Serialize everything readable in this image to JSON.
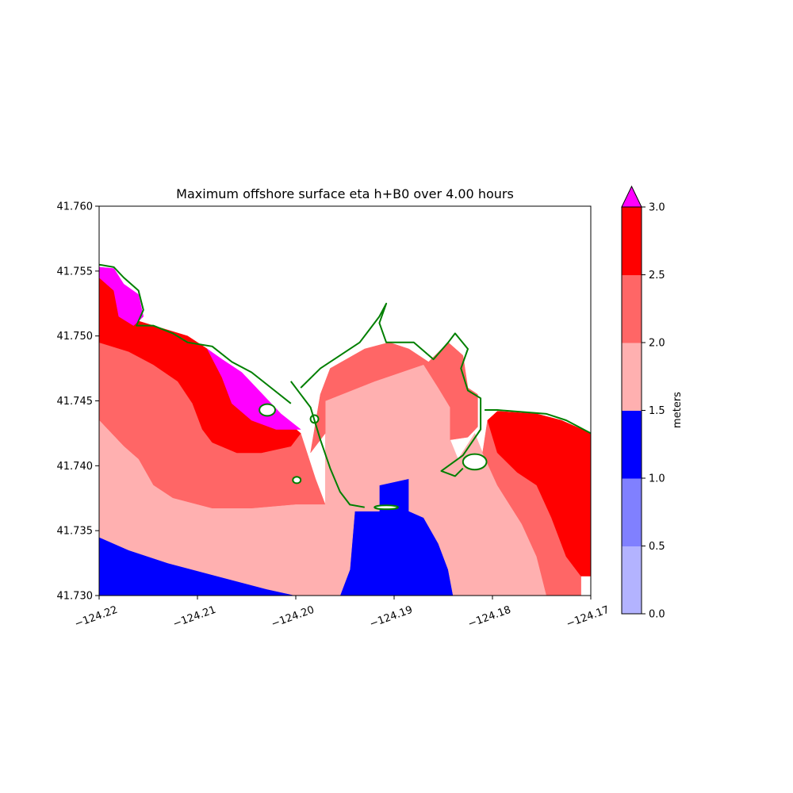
{
  "chart_data": {
    "type": "heatmap",
    "title": "Maximum offshore surface eta h+B0 over 4.00 hours",
    "xlabel": "",
    "ylabel": "",
    "xlim": [
      -124.22,
      -124.17
    ],
    "ylim": [
      41.73,
      41.76
    ],
    "x_ticks": [
      "−124.22",
      "−124.21",
      "−124.20",
      "−124.19",
      "−124.18",
      "−124.17"
    ],
    "y_ticks": [
      "41.730",
      "41.735",
      "41.740",
      "41.745",
      "41.750",
      "41.755",
      "41.760"
    ],
    "colorbar": {
      "label": "meters",
      "extend": "max",
      "ticks": [
        "0.0",
        "0.5",
        "1.0",
        "1.5",
        "2.0",
        "2.5",
        "3.0"
      ],
      "bins": [
        {
          "range": [
            0.0,
            0.5
          ],
          "color": "#b3b3ff"
        },
        {
          "range": [
            0.5,
            1.0
          ],
          "color": "#8080ff"
        },
        {
          "range": [
            1.0,
            1.5
          ],
          "color": "#0000ff"
        },
        {
          "range": [
            1.5,
            2.0
          ],
          "color": "#ffb0b0"
        },
        {
          "range": [
            2.0,
            2.5
          ],
          "color": "#ff6666"
        },
        {
          "range": [
            2.5,
            3.0
          ],
          "color": "#ff0000"
        }
      ],
      "over_color": "#ff00ff"
    },
    "regions": [
      {
        "band": "1.0-1.5",
        "color": "#0000ff",
        "polygon": [
          [
            -124.22,
            41.7345
          ],
          [
            -124.217,
            41.7335
          ],
          [
            -124.213,
            41.7325
          ],
          [
            -124.208,
            41.7315
          ],
          [
            -124.203,
            41.7305
          ],
          [
            -124.2,
            41.73
          ],
          [
            -124.22,
            41.73
          ]
        ]
      },
      {
        "band": "1.0-1.5",
        "color": "#0000ff",
        "polygon": [
          [
            -124.1955,
            41.73
          ],
          [
            -124.1945,
            41.732
          ],
          [
            -124.194,
            41.7365
          ],
          [
            -124.1915,
            41.7365
          ],
          [
            -124.1915,
            41.7385
          ],
          [
            -124.1898,
            41.7393
          ],
          [
            -124.1885,
            41.7392
          ],
          [
            -124.1885,
            41.7385
          ],
          [
            -124.1885,
            41.7365
          ],
          [
            -124.187,
            41.736
          ],
          [
            -124.1855,
            41.734
          ],
          [
            -124.1845,
            41.732
          ],
          [
            -124.184,
            41.73
          ]
        ]
      },
      {
        "band": "1.0-1.5",
        "color": "#0000ff",
        "polygon": [
          [
            -124.1855,
            41.7393
          ],
          [
            -124.1835,
            41.7393
          ],
          [
            -124.1835,
            41.7388
          ],
          [
            -124.1855,
            41.7388
          ]
        ]
      },
      {
        "band": "2.0-2.5",
        "color": "#ff6666",
        "polygon": [
          [
            -124.22,
            41.7495
          ],
          [
            -124.217,
            41.7488
          ],
          [
            -124.2145,
            41.7478
          ],
          [
            -124.212,
            41.7465
          ],
          [
            -124.2105,
            41.7448
          ],
          [
            -124.2095,
            41.7428
          ],
          [
            -124.2085,
            41.7418
          ],
          [
            -124.206,
            41.741
          ],
          [
            -124.2035,
            41.741
          ],
          [
            -124.2005,
            41.7415
          ],
          [
            -124.1995,
            41.7425
          ],
          [
            -124.198,
            41.739
          ],
          [
            -124.197,
            41.737
          ],
          [
            -124.2,
            41.737
          ],
          [
            -124.2045,
            41.7367
          ],
          [
            -124.2085,
            41.7367
          ],
          [
            -124.2125,
            41.7375
          ],
          [
            -124.2145,
            41.7385
          ],
          [
            -124.216,
            41.7405
          ],
          [
            -124.2175,
            41.7415
          ],
          [
            -124.22,
            41.7435
          ]
        ]
      },
      {
        "band": "2.5-3.0",
        "color": "#ff0000",
        "polygon": [
          [
            -124.22,
            41.7545
          ],
          [
            -124.2185,
            41.7535
          ],
          [
            -124.2175,
            41.7515
          ],
          [
            -124.2145,
            41.7508
          ],
          [
            -124.211,
            41.75
          ],
          [
            -124.209,
            41.749
          ],
          [
            -124.206,
            41.747
          ],
          [
            -124.204,
            41.7455
          ],
          [
            -124.2015,
            41.7438
          ],
          [
            -124.1995,
            41.7425
          ],
          [
            -124.2005,
            41.7415
          ],
          [
            -124.2035,
            41.741
          ],
          [
            -124.206,
            41.741
          ],
          [
            -124.2085,
            41.7418
          ],
          [
            -124.2095,
            41.7428
          ],
          [
            -124.2105,
            41.7448
          ],
          [
            -124.212,
            41.7465
          ],
          [
            -124.2145,
            41.7478
          ],
          [
            -124.217,
            41.7488
          ],
          [
            -124.22,
            41.7495
          ]
        ]
      },
      {
        "band": ">3.0",
        "color": "#ff00ff",
        "polygon": [
          [
            -124.22,
            41.7553
          ],
          [
            -124.2185,
            41.7552
          ],
          [
            -124.2175,
            41.754
          ],
          [
            -124.216,
            41.7532
          ],
          [
            -124.2155,
            41.7515
          ],
          [
            -124.2165,
            41.7508
          ],
          [
            -124.218,
            41.7515
          ],
          [
            -124.2185,
            41.7535
          ],
          [
            -124.22,
            41.7545
          ]
        ]
      },
      {
        "band": ">3.0",
        "color": "#ff00ff",
        "polygon": [
          [
            -124.209,
            41.749
          ],
          [
            -124.2075,
            41.7482
          ],
          [
            -124.2055,
            41.7472
          ],
          [
            -124.204,
            41.746
          ],
          [
            -124.2015,
            41.744
          ],
          [
            -124.1995,
            41.7428
          ],
          [
            -124.202,
            41.7428
          ],
          [
            -124.2045,
            41.7435
          ],
          [
            -124.2065,
            41.7448
          ],
          [
            -124.2075,
            41.7468
          ]
        ]
      },
      {
        "band": "1.5-2.0",
        "color": "#ffb0b0",
        "polygon": [
          [
            -124.197,
            41.745
          ],
          [
            -124.192,
            41.7465
          ],
          [
            -124.187,
            41.7478
          ],
          [
            -124.1855,
            41.746
          ],
          [
            -124.1843,
            41.7445
          ],
          [
            -124.1843,
            41.742
          ],
          [
            -124.1835,
            41.7405
          ],
          [
            -124.1818,
            41.7425
          ],
          [
            -124.181,
            41.741
          ],
          [
            -124.1795,
            41.7385
          ],
          [
            -124.177,
            41.7355
          ],
          [
            -124.1755,
            41.733
          ],
          [
            -124.1745,
            41.73
          ],
          [
            -124.184,
            41.73
          ],
          [
            -124.1845,
            41.732
          ],
          [
            -124.1855,
            41.734
          ],
          [
            -124.187,
            41.736
          ],
          [
            -124.1885,
            41.7365
          ],
          [
            -124.1885,
            41.739
          ],
          [
            -124.1915,
            41.7385
          ],
          [
            -124.1915,
            41.7365
          ],
          [
            -124.194,
            41.7365
          ],
          [
            -124.1945,
            41.732
          ],
          [
            -124.1955,
            41.73
          ],
          [
            -124.2,
            41.73
          ],
          [
            -124.203,
            41.7305
          ],
          [
            -124.208,
            41.7315
          ],
          [
            -124.213,
            41.7325
          ],
          [
            -124.217,
            41.7335
          ],
          [
            -124.22,
            41.7345
          ],
          [
            -124.22,
            41.7435
          ],
          [
            -124.2175,
            41.7415
          ],
          [
            -124.216,
            41.7405
          ],
          [
            -124.2145,
            41.7385
          ],
          [
            -124.2125,
            41.7375
          ],
          [
            -124.2085,
            41.7367
          ],
          [
            -124.2045,
            41.7367
          ],
          [
            -124.2,
            41.737
          ],
          [
            -124.197,
            41.737
          ]
        ]
      },
      {
        "band": "2.0-2.5",
        "color": "#ff6666",
        "polygon": [
          [
            -124.1975,
            41.7455
          ],
          [
            -124.1965,
            41.7475
          ],
          [
            -124.193,
            41.749
          ],
          [
            -124.1905,
            41.7495
          ],
          [
            -124.1885,
            41.749
          ],
          [
            -124.1865,
            41.748
          ],
          [
            -124.1845,
            41.7495
          ],
          [
            -124.183,
            41.7485
          ],
          [
            -124.1825,
            41.746
          ],
          [
            -124.1815,
            41.7455
          ],
          [
            -124.1815,
            41.743
          ],
          [
            -124.1825,
            41.7422
          ],
          [
            -124.1843,
            41.742
          ],
          [
            -124.1843,
            41.7445
          ],
          [
            -124.1855,
            41.746
          ],
          [
            -124.187,
            41.7478
          ],
          [
            -124.192,
            41.7465
          ],
          [
            -124.197,
            41.745
          ],
          [
            -124.197,
            41.7425
          ],
          [
            -124.1985,
            41.741
          ]
        ]
      },
      {
        "band": "2.0-2.5",
        "color": "#ff6666",
        "polygon": [
          [
            -124.1805,
            41.7435
          ],
          [
            -124.1795,
            41.741
          ],
          [
            -124.1775,
            41.7395
          ],
          [
            -124.1755,
            41.7385
          ],
          [
            -124.174,
            41.736
          ],
          [
            -124.1725,
            41.733
          ],
          [
            -124.171,
            41.7315
          ],
          [
            -124.171,
            41.73
          ],
          [
            -124.1745,
            41.73
          ],
          [
            -124.1755,
            41.733
          ],
          [
            -124.177,
            41.7355
          ],
          [
            -124.1795,
            41.7385
          ],
          [
            -124.181,
            41.741
          ],
          [
            -124.1805,
            41.7435
          ]
        ]
      },
      {
        "band": "2.5-3.0",
        "color": "#ff0000",
        "polygon": [
          [
            -124.1805,
            41.7435
          ],
          [
            -124.1795,
            41.7442
          ],
          [
            -124.1755,
            41.744
          ],
          [
            -124.173,
            41.7435
          ],
          [
            -124.17,
            41.7425
          ],
          [
            -124.17,
            41.7315
          ],
          [
            -124.171,
            41.7315
          ],
          [
            -124.1725,
            41.733
          ],
          [
            -124.174,
            41.736
          ],
          [
            -124.1755,
            41.7385
          ],
          [
            -124.1775,
            41.7395
          ],
          [
            -124.1795,
            41.741
          ]
        ]
      }
    ],
    "shorelines": [
      [
        [
          -124.2005,
          41.7465
        ],
        [
          -124.1985,
          41.7445
        ],
        [
          -124.1975,
          41.742
        ],
        [
          -124.1965,
          41.7398
        ],
        [
          -124.1955,
          41.738
        ],
        [
          -124.1945,
          41.737
        ],
        [
          -124.193,
          41.7368
        ]
      ],
      [
        [
          -124.1995,
          41.746
        ],
        [
          -124.1975,
          41.7475
        ],
        [
          -124.1955,
          41.7485
        ],
        [
          -124.1935,
          41.7495
        ],
        [
          -124.1925,
          41.7505
        ],
        [
          -124.1915,
          41.7515
        ],
        [
          -124.1908,
          41.7525
        ],
        [
          -124.1915,
          41.751
        ],
        [
          -124.1908,
          41.7495
        ],
        [
          -124.188,
          41.7495
        ],
        [
          -124.186,
          41.7482
        ],
        [
          -124.1845,
          41.7495
        ],
        [
          -124.1838,
          41.7502
        ],
        [
          -124.1825,
          41.749
        ],
        [
          -124.1832,
          41.7475
        ],
        [
          -124.1825,
          41.7458
        ],
        [
          -124.1812,
          41.7452
        ],
        [
          -124.1812,
          41.7428
        ],
        [
          -124.183,
          41.7408
        ],
        [
          -124.1852,
          41.7396
        ],
        [
          -124.1838,
          41.7392
        ],
        [
          -124.183,
          41.7398
        ]
      ],
      [
        [
          -124.22,
          41.7555
        ],
        [
          -124.2185,
          41.7553
        ],
        [
          -124.2175,
          41.7545
        ],
        [
          -124.216,
          41.7535
        ],
        [
          -124.2155,
          41.752
        ],
        [
          -124.2162,
          41.7508
        ],
        [
          -124.2145,
          41.7508
        ],
        [
          -124.2125,
          41.7502
        ],
        [
          -124.211,
          41.7495
        ],
        [
          -124.2085,
          41.7492
        ],
        [
          -124.2065,
          41.748
        ],
        [
          -124.2045,
          41.7472
        ],
        [
          -124.2025,
          41.746
        ],
        [
          -124.2005,
          41.7448
        ]
      ],
      [
        [
          -124.1808,
          41.7443
        ],
        [
          -124.1795,
          41.7443
        ],
        [
          -124.1745,
          41.744
        ],
        [
          -124.1725,
          41.7435
        ],
        [
          -124.17,
          41.7425
        ]
      ]
    ],
    "land_islands": [
      {
        "center": [
          -124.2029,
          41.7443
        ],
        "rx": 0.0008,
        "ry": 0.00045
      },
      {
        "center": [
          -124.1981,
          41.7436
        ],
        "rx": 0.0004,
        "ry": 0.0003
      },
      {
        "center": [
          -124.1999,
          41.7389
        ],
        "rx": 0.0004,
        "ry": 0.00025
      },
      {
        "center": [
          -124.1908,
          41.7368
        ],
        "rx": 0.0012,
        "ry": 0.00015
      },
      {
        "center": [
          -124.1818,
          41.7403
        ],
        "rx": 0.0012,
        "ry": 0.0006
      }
    ]
  }
}
